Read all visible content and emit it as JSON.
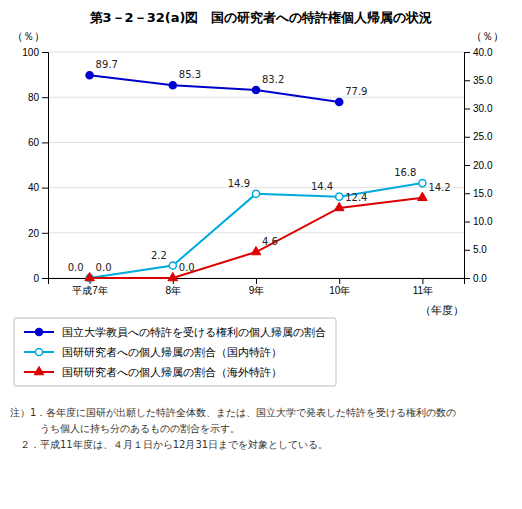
{
  "chart_data": {
    "type": "line",
    "title": "第3－2－32(a)図　国の研究者への特許権個人帰属の状況",
    "xlabel": "（年度）",
    "ylabel": "（％）",
    "y2label": "（％）",
    "categories": [
      "平成7年",
      "8年",
      "9年",
      "10年",
      "11年"
    ],
    "series": [
      {
        "name": "国立大学教員への特許を受ける権利の個人帰属の割合",
        "color": "#0000cc",
        "marker": "circle",
        "values": [
          89.7,
          85.3,
          83.2,
          77.9,
          null
        ],
        "value_labels": [
          "89.7",
          "85.3",
          "83.2",
          "77.9",
          null
        ]
      },
      {
        "name": "国研研究者への個人帰属の割合（国内特許）",
        "color": "#00aadd",
        "marker": "circle-open",
        "axis": "y2",
        "values": [
          0.0,
          2.2,
          14.9,
          14.4,
          16.8
        ],
        "value_labels": [
          "0.0",
          "2.2",
          "14.9",
          "14.4",
          "16.8"
        ]
      },
      {
        "name": "国研研究者への個人帰属の割合（海外特許）",
        "color": "#dd0000",
        "marker": "triangle",
        "axis": "y2",
        "values": [
          0.0,
          0.0,
          4.6,
          12.4,
          14.2
        ],
        "value_labels": [
          "0.0",
          "0.0",
          "4.6",
          "12.4",
          "14.2"
        ]
      }
    ],
    "ylim": [
      0,
      100
    ],
    "yticks": [
      0,
      20,
      40,
      60,
      80,
      100
    ],
    "y2lim": [
      0,
      40.0
    ],
    "y2ticks": [
      {
        "value": 0.0,
        "label": "0.0"
      },
      {
        "value": 5.0,
        "label": "5.0"
      },
      {
        "value": 10.0,
        "label": "10.0"
      },
      {
        "value": 15.0,
        "label": "15.0"
      },
      {
        "value": 20.0,
        "label": "20.0"
      },
      {
        "value": 25.0,
        "label": "25.0"
      },
      {
        "value": 30.0,
        "label": "30.0"
      },
      {
        "value": 35.0,
        "label": "35.0"
      },
      {
        "value": 40.0,
        "label": "40.0"
      }
    ],
    "grid": true,
    "data_labels": true,
    "legend": "bottom",
    "notes": [
      "注）1．各年度に国研が出願した特許全体数、または、国立大学で発表した特許を受ける権利の数の",
      "　　　うち個人に持ち分のあるものの割合を示す。",
      "　２．平成11年度は、４月１日から12月31日までを対象としている。"
    ]
  }
}
